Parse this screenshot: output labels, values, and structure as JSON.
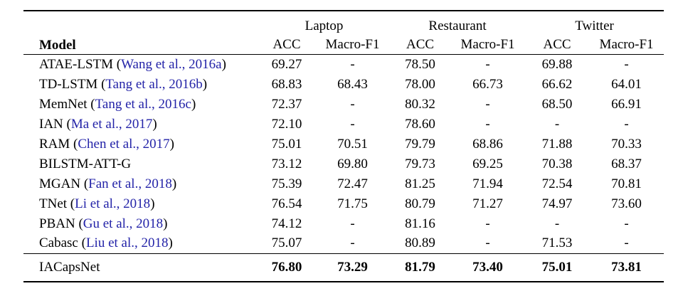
{
  "table": {
    "model_header": "Model",
    "groups": [
      {
        "label": "Laptop"
      },
      {
        "label": "Restaurant"
      },
      {
        "label": "Twitter"
      }
    ],
    "subheaders": [
      "ACC",
      "Macro-F1",
      "ACC",
      "Macro-F1",
      "ACC",
      "Macro-F1"
    ],
    "citation_color": "#2323a8",
    "rows": [
      {
        "model": "ATAE-LSTM",
        "citation": "Wang et al., 2016a",
        "values": [
          "69.27",
          "-",
          "78.50",
          "-",
          "69.88",
          "-"
        ]
      },
      {
        "model": "TD-LSTM",
        "citation": "Tang et al., 2016b",
        "values": [
          "68.83",
          "68.43",
          "78.00",
          "66.73",
          "66.62",
          "64.01"
        ]
      },
      {
        "model": "MemNet",
        "citation": "Tang et al., 2016c",
        "values": [
          "72.37",
          "-",
          "80.32",
          "-",
          "68.50",
          "66.91"
        ]
      },
      {
        "model": "IAN",
        "citation": "Ma et al., 2017",
        "values": [
          "72.10",
          "-",
          "78.60",
          "-",
          "-",
          "-"
        ]
      },
      {
        "model": "RAM",
        "citation": "Chen et al., 2017",
        "values": [
          "75.01",
          "70.51",
          "79.79",
          "68.86",
          "71.88",
          "70.33"
        ]
      },
      {
        "model": "BILSTM-ATT-G",
        "citation": null,
        "values": [
          "73.12",
          "69.80",
          "79.73",
          "69.25",
          "70.38",
          "68.37"
        ]
      },
      {
        "model": "MGAN",
        "citation": "Fan et al., 2018",
        "values": [
          "75.39",
          "72.47",
          "81.25",
          "71.94",
          "72.54",
          "70.81"
        ]
      },
      {
        "model": "TNet",
        "citation": "Li et al., 2018",
        "values": [
          "76.54",
          "71.75",
          "80.79",
          "71.27",
          "74.97",
          "73.60"
        ]
      },
      {
        "model": "PBAN",
        "citation": "Gu et al., 2018",
        "values": [
          "74.12",
          "-",
          "81.16",
          "-",
          "-",
          "-"
        ]
      },
      {
        "model": "Cabasc",
        "citation": "Liu et al., 2018",
        "values": [
          "75.07",
          "-",
          "80.89",
          "-",
          "71.53",
          "-"
        ]
      }
    ],
    "final_row": {
      "model": "IACapsNet",
      "values": [
        "76.80",
        "73.29",
        "81.79",
        "73.40",
        "75.01",
        "73.81"
      ]
    }
  }
}
